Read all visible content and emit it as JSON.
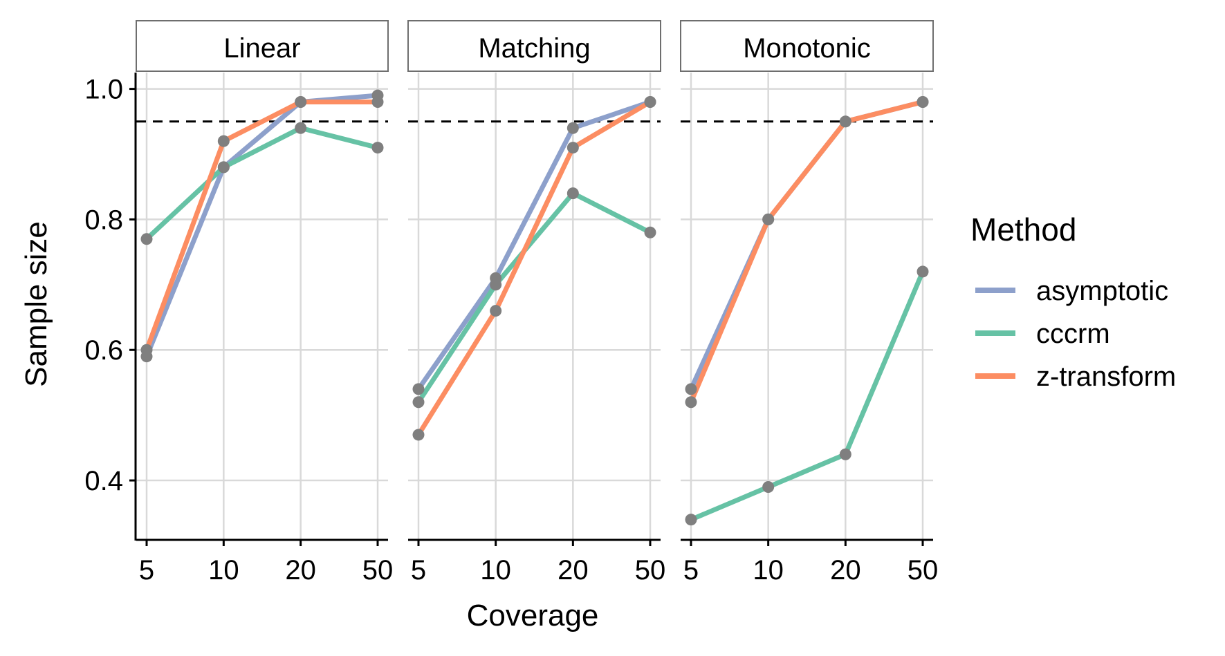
{
  "chart_data": {
    "type": "line",
    "facet_type": "small-multiples",
    "panels": [
      "Linear",
      "Matching",
      "Monotonic"
    ],
    "x": [
      "5",
      "10",
      "20",
      "50"
    ],
    "xlabel": "Coverage",
    "ylabel": "Sample size",
    "ylim": [
      0.31,
      1.025
    ],
    "yticks": [
      "0.4",
      "0.6",
      "0.8",
      "1.0"
    ],
    "ytick_values": [
      0.4,
      0.6,
      0.8,
      1.0
    ],
    "reference_line": {
      "y": 0.95,
      "style": "dashed",
      "color": "#000000"
    },
    "grid": true,
    "point_color": "#7f7f7f",
    "legend": {
      "title": "Method",
      "position": "right",
      "entries": [
        "asymptotic",
        "cccrm",
        "z-transform"
      ]
    },
    "series": [
      {
        "name": "asymptotic",
        "color": "#8DA0CB",
        "values": {
          "Linear": [
            0.59,
            0.88,
            0.98,
            0.99
          ],
          "Matching": [
            0.54,
            0.71,
            0.94,
            0.98
          ],
          "Monotonic": [
            0.54,
            0.8,
            0.95,
            0.98
          ]
        }
      },
      {
        "name": "cccrm",
        "color": "#66C2A5",
        "values": {
          "Linear": [
            0.77,
            0.88,
            0.94,
            0.91
          ],
          "Matching": [
            0.52,
            0.7,
            0.84,
            0.78
          ],
          "Monotonic": [
            0.34,
            0.39,
            0.44,
            0.72
          ]
        }
      },
      {
        "name": "z-transform",
        "color": "#FC8D62",
        "values": {
          "Linear": [
            0.6,
            0.92,
            0.98,
            0.98
          ],
          "Matching": [
            0.47,
            0.66,
            0.91,
            0.98
          ],
          "Monotonic": [
            0.52,
            0.8,
            0.95,
            0.98
          ]
        }
      }
    ]
  }
}
